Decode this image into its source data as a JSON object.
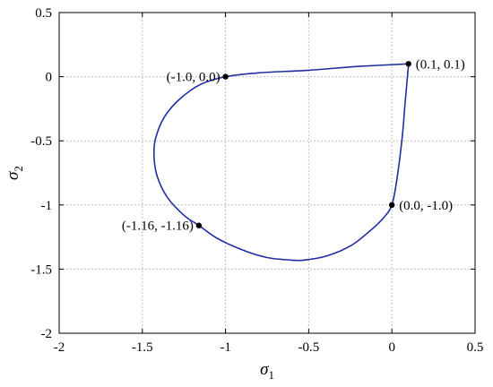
{
  "chart_data": {
    "type": "line",
    "title": "",
    "xlabel": "σ",
    "xlabel_sub": "1",
    "ylabel": "σ",
    "ylabel_sub": "2",
    "xlim": [
      -2,
      0.5
    ],
    "ylim": [
      -2,
      0.5
    ],
    "grid": true,
    "xticks": [
      -2,
      -1.5,
      -1,
      -0.5,
      0,
      0.5
    ],
    "xtick_labels": [
      "-2",
      "-1.5",
      "-1",
      "-0.5",
      "0",
      "0.5"
    ],
    "yticks": [
      0.5,
      0,
      -0.5,
      -1,
      -1.5,
      -2
    ],
    "ytick_labels": [
      "0.5",
      "0",
      "-0.5",
      "-1",
      "-1.5",
      "-2"
    ],
    "series": [
      {
        "color": "#1f2ea0",
        "x": [
          0.1,
          -0.2,
          -0.5,
          -0.8,
          -1.0,
          -1.15,
          -1.28,
          -1.37,
          -1.42,
          -1.43,
          -1.41,
          -1.35,
          -1.25,
          -1.16,
          -1.05,
          -0.9,
          -0.75,
          -0.6,
          -0.53,
          -0.4,
          -0.25,
          -0.13,
          -0.05,
          0.0,
          0.03,
          0.06,
          0.08,
          0.1
        ],
        "y": [
          0.1,
          0.08,
          0.05,
          0.03,
          0.0,
          -0.06,
          -0.18,
          -0.32,
          -0.48,
          -0.62,
          -0.78,
          -0.94,
          -1.08,
          -1.16,
          -1.26,
          -1.35,
          -1.41,
          -1.43,
          -1.43,
          -1.4,
          -1.32,
          -1.2,
          -1.1,
          -1.0,
          -0.8,
          -0.5,
          -0.2,
          0.1
        ]
      }
    ],
    "points": [
      {
        "x": 0.1,
        "y": 0.1,
        "label": "(0.1, 0.1)",
        "anchor": "start"
      },
      {
        "x": -1.0,
        "y": 0.0,
        "label": "(-1.0, 0.0)",
        "anchor": "end"
      },
      {
        "x": 0.0,
        "y": -1.0,
        "label": "(0.0, -1.0)",
        "anchor": "start"
      },
      {
        "x": -1.16,
        "y": -1.16,
        "label": "(-1.16, -1.16)",
        "anchor": "end"
      }
    ]
  }
}
